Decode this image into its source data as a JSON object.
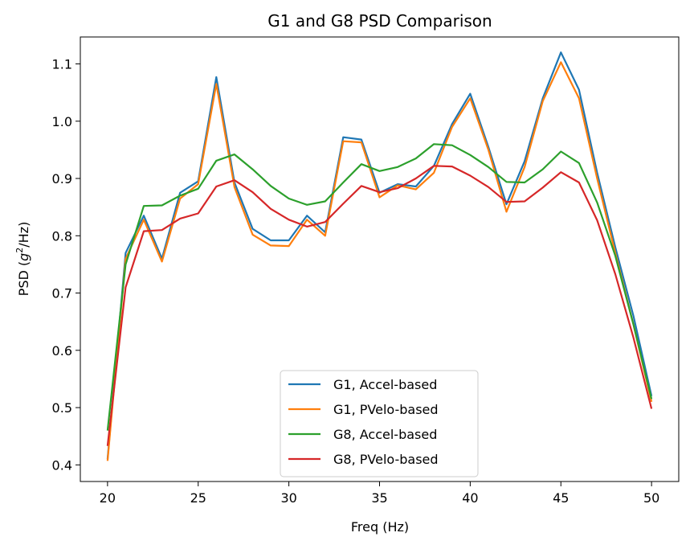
{
  "chart_data": {
    "type": "line",
    "title": "G1 and G8 PSD Comparison",
    "xlabel": "Freq (Hz)",
    "ylabel_main": "PSD (",
    "ylabel_var": "g",
    "ylabel_sup": "2",
    "ylabel_rest": "/Hz)",
    "xlim": [
      18.5,
      51.5
    ],
    "ylim": [
      0.371,
      1.147
    ],
    "xticks": [
      20,
      25,
      30,
      35,
      40,
      45,
      50
    ],
    "xtick_labels": [
      "20",
      "25",
      "30",
      "35",
      "40",
      "45",
      "50"
    ],
    "yticks": [
      0.4,
      0.5,
      0.6,
      0.7,
      0.8,
      0.9,
      1.0,
      1.1
    ],
    "ytick_labels": [
      "0.4",
      "0.5",
      "0.6",
      "0.7",
      "0.8",
      "0.9",
      "1.0",
      "1.1"
    ],
    "grid": false,
    "legend_position": "bottom-center",
    "x": [
      20,
      21,
      22,
      23,
      24,
      25,
      26,
      27,
      28,
      29,
      30,
      31,
      32,
      33,
      34,
      35,
      36,
      37,
      38,
      39,
      40,
      41,
      42,
      43,
      44,
      45,
      46,
      47,
      48,
      49,
      50
    ],
    "series": [
      {
        "name": "G1, Accel-based",
        "color": "#1f77b4",
        "values": [
          0.41,
          0.77,
          0.835,
          0.76,
          0.875,
          0.895,
          1.077,
          0.893,
          0.812,
          0.792,
          0.792,
          0.835,
          0.806,
          0.972,
          0.968,
          0.875,
          0.89,
          0.886,
          0.922,
          0.995,
          1.048,
          0.955,
          0.855,
          0.93,
          1.04,
          1.12,
          1.055,
          0.91,
          0.78,
          0.66,
          0.52
        ]
      },
      {
        "name": "G1, PVelo-based",
        "color": "#ff7f0e",
        "values": [
          0.407,
          0.76,
          0.828,
          0.755,
          0.865,
          0.89,
          1.065,
          0.885,
          0.802,
          0.783,
          0.782,
          0.828,
          0.8,
          0.965,
          0.963,
          0.867,
          0.888,
          0.881,
          0.91,
          0.99,
          1.04,
          0.95,
          0.842,
          0.92,
          1.035,
          1.103,
          1.04,
          0.9,
          0.77,
          0.645,
          0.51
        ]
      },
      {
        "name": "G8, Accel-based",
        "color": "#2ca02c",
        "values": [
          0.46,
          0.75,
          0.852,
          0.853,
          0.87,
          0.882,
          0.931,
          0.942,
          0.916,
          0.887,
          0.865,
          0.854,
          0.86,
          0.893,
          0.925,
          0.913,
          0.92,
          0.935,
          0.96,
          0.958,
          0.941,
          0.92,
          0.894,
          0.893,
          0.916,
          0.947,
          0.927,
          0.858,
          0.765,
          0.645,
          0.515
        ]
      },
      {
        "name": "G8, PVelo-based",
        "color": "#d62728",
        "values": [
          0.433,
          0.71,
          0.808,
          0.81,
          0.83,
          0.839,
          0.886,
          0.897,
          0.876,
          0.847,
          0.828,
          0.816,
          0.824,
          0.856,
          0.887,
          0.876,
          0.883,
          0.9,
          0.922,
          0.921,
          0.905,
          0.885,
          0.859,
          0.86,
          0.884,
          0.911,
          0.893,
          0.827,
          0.733,
          0.622,
          0.498
        ]
      }
    ]
  }
}
